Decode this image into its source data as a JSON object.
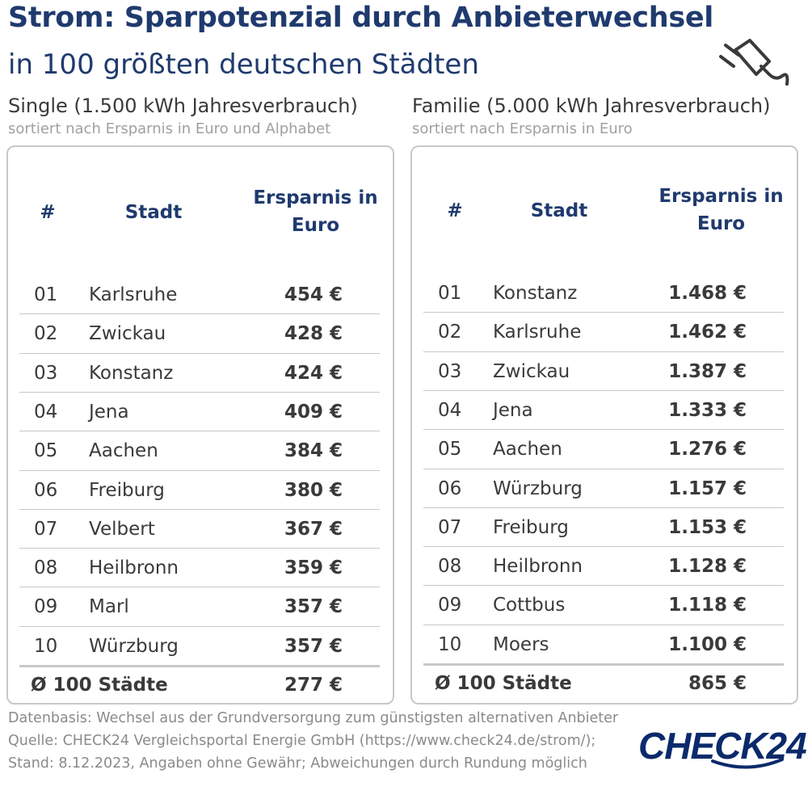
{
  "header": {
    "title": "Strom: Sparpotenzial durch Anbieterwechsel",
    "subtitle": "in 100 größten deutschen Städten"
  },
  "icons": {
    "plug": "plug-icon"
  },
  "colors": {
    "brand_blue": "#1f3a6e",
    "logo_blue": "#0b2a6b",
    "divider": "#c8c8c8"
  },
  "chart_data": [
    {
      "type": "table",
      "title": "Single (1.500 kWh Jahresverbrauch)",
      "subtitle": "sortiert nach Ersparnis in Euro und Alphabet",
      "columns": [
        "#",
        "Stadt",
        "Ersparnis in Euro"
      ],
      "rows": [
        {
          "rank": "01",
          "city": "Karlsruhe",
          "value": "454 €"
        },
        {
          "rank": "02",
          "city": "Zwickau",
          "value": "428 €"
        },
        {
          "rank": "03",
          "city": "Konstanz",
          "value": "424 €"
        },
        {
          "rank": "04",
          "city": "Jena",
          "value": "409 €"
        },
        {
          "rank": "05",
          "city": "Aachen",
          "value": "384 €"
        },
        {
          "rank": "06",
          "city": "Freiburg",
          "value": "380 €"
        },
        {
          "rank": "07",
          "city": "Velbert",
          "value": "367 €"
        },
        {
          "rank": "08",
          "city": "Heilbronn",
          "value": "359 €"
        },
        {
          "rank": "09",
          "city": "Marl",
          "value": "357 €"
        },
        {
          "rank": "10",
          "city": "Würzburg",
          "value": "357 €"
        }
      ],
      "average_label": "Ø 100 Städte",
      "average_value": "277 €"
    },
    {
      "type": "table",
      "title": "Familie (5.000 kWh Jahresverbrauch)",
      "subtitle": "sortiert nach Ersparnis in Euro",
      "columns": [
        "#",
        "Stadt",
        "Ersparnis in Euro"
      ],
      "rows": [
        {
          "rank": "01",
          "city": "Konstanz",
          "value": "1.468 €"
        },
        {
          "rank": "02",
          "city": "Karlsruhe",
          "value": "1.462 €"
        },
        {
          "rank": "03",
          "city": "Zwickau",
          "value": "1.387 €"
        },
        {
          "rank": "04",
          "city": "Jena",
          "value": "1.333 €"
        },
        {
          "rank": "05",
          "city": "Aachen",
          "value": "1.276 €"
        },
        {
          "rank": "06",
          "city": "Würzburg",
          "value": "1.157 €"
        },
        {
          "rank": "07",
          "city": "Freiburg",
          "value": "1.153 €"
        },
        {
          "rank": "08",
          "city": "Heilbronn",
          "value": "1.128 €"
        },
        {
          "rank": "09",
          "city": "Cottbus",
          "value": "1.118 €"
        },
        {
          "rank": "10",
          "city": "Moers",
          "value": "1.100 €"
        }
      ],
      "average_label": "Ø 100 Städte",
      "average_value": "865 €"
    }
  ],
  "footer": {
    "line1": "Datenbasis: Wechsel aus der Grundversorgung zum günstigsten alternativen Anbieter",
    "line2": "Quelle: CHECK24 Vergleichsportal Energie GmbH (https://www.check24.de/strom/);",
    "line3": "Stand: 8.12.2023, Angaben ohne Gewähr; Abweichungen durch Rundung möglich"
  },
  "logo": {
    "text": "CHECK24"
  }
}
